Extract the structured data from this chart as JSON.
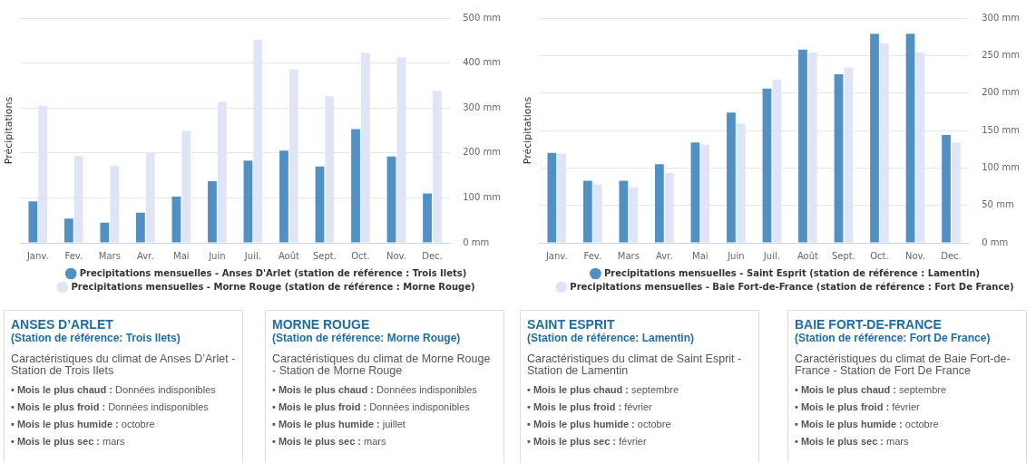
{
  "chart_data": [
    {
      "type": "bar",
      "ylabel": "Précipitations",
      "categories": [
        "Janv.",
        "Fev.",
        "Mars",
        "Avr.",
        "Mai",
        "Juin",
        "Juil.",
        "Août",
        "Sept.",
        "Oct.",
        "Nov.",
        "Dec."
      ],
      "series": [
        {
          "name": "Precipitations mensuelles - Anses D'Arlet (station de référence : Trois Ilets)",
          "color": "#4f91c4",
          "values": [
            92,
            54,
            45,
            67,
            103,
            137,
            183,
            205,
            170,
            253,
            192,
            110
          ]
        },
        {
          "name": "Precipitations mensuelles - Morne Rouge (station de référence : Morne Rouge)",
          "color": "#dfe5f7",
          "values": [
            305,
            193,
            172,
            200,
            249,
            314,
            452,
            386,
            326,
            423,
            413,
            338
          ]
        }
      ],
      "ylim": [
        0,
        500
      ],
      "yticks": [
        {
          "value": 0,
          "label": "0 mm"
        },
        {
          "value": 100,
          "label": "100 mm"
        },
        {
          "value": 200,
          "label": "200 mm"
        },
        {
          "value": 300,
          "label": "300 mm"
        },
        {
          "value": 400,
          "label": "400 mm"
        },
        {
          "value": 500,
          "label": "500 mm"
        }
      ],
      "grid": "y",
      "legend": "bottom",
      "marker": "circle"
    },
    {
      "type": "bar",
      "ylabel": "Précipitations",
      "categories": [
        "Janv.",
        "Fev.",
        "Mars",
        "Avr.",
        "Mai",
        "Juin",
        "Juil.",
        "Août",
        "Sept.",
        "Oct.",
        "Nov.",
        "Dec."
      ],
      "series": [
        {
          "name": "Precipitations mensuelles - Saint Esprit (station de référence : Lamentin)",
          "color": "#4f91c4",
          "values": [
            120,
            83,
            83,
            105,
            134,
            174,
            206,
            258,
            225,
            279,
            279,
            144
          ]
        },
        {
          "name": "Precipitations mensuelles - Baie Fort-de-France (station de référence : Fort De France)",
          "color": "#dfe5f7",
          "values": [
            119,
            78,
            74,
            93,
            131,
            159,
            218,
            254,
            234,
            266,
            254,
            134
          ]
        }
      ],
      "ylim": [
        0,
        300
      ],
      "yticks": [
        {
          "value": 0,
          "label": "0 mm"
        },
        {
          "value": 50,
          "label": "50 mm"
        },
        {
          "value": 100,
          "label": "100 mm"
        },
        {
          "value": 150,
          "label": "150 mm"
        },
        {
          "value": 200,
          "label": "200 mm"
        },
        {
          "value": 250,
          "label": "250 mm"
        },
        {
          "value": 300,
          "label": "300 mm"
        }
      ],
      "grid": "y",
      "legend": "bottom",
      "marker": "circle"
    },
    {
      "type": "other",
      "title": "ANSES D’ARLET",
      "subtitle": "(Station de référence: Trois Ilets)",
      "annotations": [
        "Caractéristiques du climat de Anses D’Arlet - Station de Trois Ilets",
        "• Mois le plus chaud : Données indisponibles",
        "• Mois le plus froid : Données indisponibles",
        "• Mois le plus humide : octobre",
        "• Mois le plus sec : mars"
      ]
    },
    {
      "type": "other",
      "title": "MORNE ROUGE",
      "subtitle": "(Station de référence: Morne Rouge)",
      "annotations": [
        "Caractéristiques du climat de Morne Rouge - Station de Morne Rouge",
        "• Mois le plus chaud : Données indisponibles",
        "• Mois le plus froid : Données indisponibles",
        "• Mois le plus humide : juillet",
        "• Mois le plus sec : mars"
      ]
    },
    {
      "type": "other",
      "title": "SAINT ESPRIT",
      "subtitle": "(Station de référence: Lamentin)",
      "annotations": [
        "Caractéristiques du climat de Saint Esprit - Station de Lamentin",
        "• Mois le plus chaud : septembre",
        "• Mois le plus froid : février",
        "• Mois le plus humide : octobre",
        "• Mois le plus sec : février"
      ]
    },
    {
      "type": "other",
      "title": "BAIE FORT-DE-FRANCE",
      "subtitle": "(Station de référence: Fort De France)",
      "annotations": [
        "Caractéristiques du climat de Baie Fort-de-France - Station de Fort De France",
        "• Mois le plus chaud : septembre",
        "• Mois le plus froid : février",
        "• Mois le plus humide : octobre",
        "• Mois le plus sec : mars"
      ]
    }
  ]
}
